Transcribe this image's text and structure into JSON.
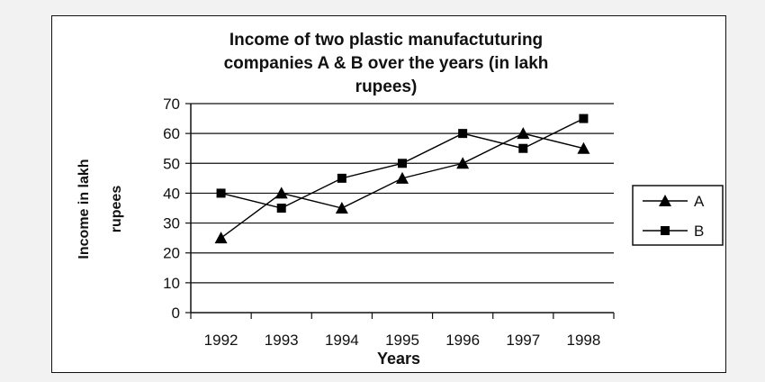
{
  "chart_data": {
    "type": "line",
    "title_lines": [
      "Income of two plastic manufactuturing",
      "companies A & B over the years (in lakh",
      "rupees)"
    ],
    "xlabel": "Years",
    "ylabel_lines": [
      "Income in lakh",
      "rupees"
    ],
    "categories": [
      "1992",
      "1993",
      "1994",
      "1995",
      "1996",
      "1997",
      "1998"
    ],
    "ylim": [
      0,
      70
    ],
    "yticks": [
      0,
      10,
      20,
      30,
      40,
      50,
      60,
      70
    ],
    "grid": "horizontal",
    "legend_position": "right",
    "series": [
      {
        "name": "A",
        "marker": "triangle",
        "color": "#000000",
        "values": [
          25,
          40,
          35,
          45,
          50,
          60,
          55
        ]
      },
      {
        "name": "B",
        "marker": "square",
        "color": "#000000",
        "values": [
          40,
          35,
          45,
          50,
          60,
          55,
          65
        ]
      }
    ]
  }
}
